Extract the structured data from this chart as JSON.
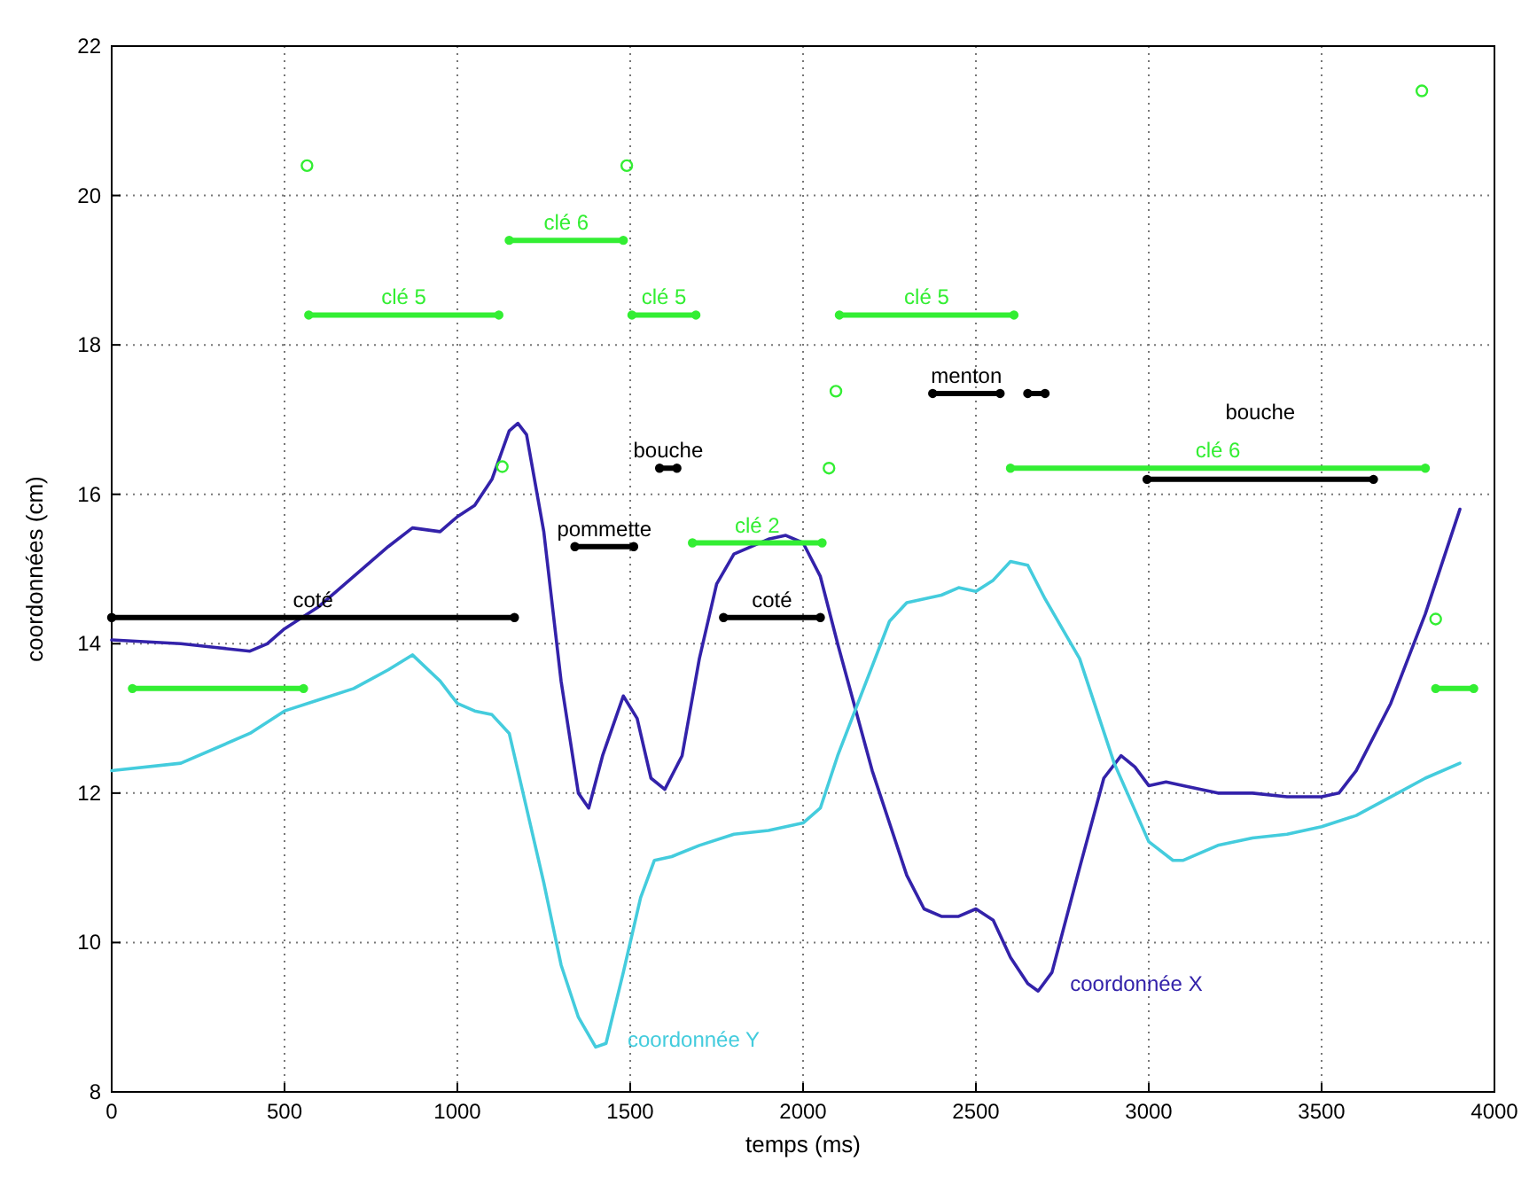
{
  "chart_data": {
    "type": "line",
    "xlabel": "temps (ms)",
    "ylabel": "coordonnées (cm)",
    "xlim": [
      0,
      4000
    ],
    "ylim": [
      8,
      22
    ],
    "xticks": [
      0,
      500,
      1000,
      1500,
      2000,
      2500,
      3000,
      3500,
      4000
    ],
    "yticks": [
      8,
      10,
      12,
      14,
      16,
      18,
      20,
      22
    ],
    "grid": true,
    "line_style": "solid",
    "series": [
      {
        "name": "coordonnée X",
        "color": "#3322aa",
        "x": [
          0,
          200,
          300,
          400,
          450,
          500,
          600,
          700,
          800,
          870,
          950,
          1000,
          1050,
          1100,
          1150,
          1175,
          1200,
          1250,
          1300,
          1350,
          1380,
          1420,
          1480,
          1520,
          1560,
          1600,
          1650,
          1700,
          1750,
          1800,
          1900,
          1950,
          2000,
          2050,
          2100,
          2200,
          2300,
          2350,
          2400,
          2450,
          2500,
          2550,
          2600,
          2650,
          2680,
          2720,
          2800,
          2870,
          2920,
          2960,
          3000,
          3050,
          3100,
          3200,
          3300,
          3400,
          3500,
          3550,
          3600,
          3700,
          3800,
          3900
        ],
        "values": [
          14.05,
          14.0,
          13.95,
          13.9,
          14.0,
          14.2,
          14.5,
          14.9,
          15.3,
          15.55,
          15.5,
          15.7,
          15.85,
          16.2,
          16.85,
          16.95,
          16.8,
          15.5,
          13.5,
          12.0,
          11.8,
          12.5,
          13.3,
          13.0,
          12.2,
          12.05,
          12.5,
          13.8,
          14.8,
          15.2,
          15.4,
          15.45,
          15.35,
          14.9,
          14.0,
          12.3,
          10.9,
          10.45,
          10.35,
          10.35,
          10.45,
          10.3,
          9.8,
          9.45,
          9.35,
          9.6,
          11.0,
          12.2,
          12.5,
          12.35,
          12.1,
          12.15,
          12.1,
          12.0,
          12.0,
          11.95,
          11.95,
          12.0,
          12.3,
          13.2,
          14.4,
          15.8
        ]
      },
      {
        "name": "coordonnée Y",
        "color": "#44ccdd",
        "x": [
          0,
          200,
          400,
          500,
          600,
          700,
          800,
          870,
          950,
          1000,
          1050,
          1100,
          1150,
          1200,
          1250,
          1300,
          1350,
          1400,
          1430,
          1480,
          1530,
          1570,
          1620,
          1700,
          1800,
          1900,
          2000,
          2050,
          2100,
          2200,
          2250,
          2300,
          2400,
          2450,
          2500,
          2550,
          2600,
          2650,
          2700,
          2800,
          2900,
          3000,
          3070,
          3100,
          3200,
          3300,
          3400,
          3500,
          3600,
          3700,
          3800,
          3900
        ],
        "values": [
          12.3,
          12.4,
          12.8,
          13.1,
          13.25,
          13.4,
          13.65,
          13.85,
          13.5,
          13.2,
          13.1,
          13.05,
          12.8,
          11.8,
          10.8,
          9.7,
          9.0,
          8.6,
          8.65,
          9.6,
          10.6,
          11.1,
          11.15,
          11.3,
          11.45,
          11.5,
          11.6,
          11.8,
          12.5,
          13.7,
          14.3,
          14.55,
          14.65,
          14.75,
          14.7,
          14.85,
          15.1,
          15.05,
          14.6,
          13.8,
          12.4,
          11.35,
          11.1,
          11.1,
          11.3,
          11.4,
          11.45,
          11.55,
          11.7,
          11.95,
          12.2,
          12.4
        ]
      },
      {
        "name": "clé 5",
        "color": "#33ee33",
        "type": "line",
        "marker": "circle",
        "x": [
          570,
          1120
        ],
        "values": [
          18.4,
          18.4
        ]
      },
      {
        "name": "clé 6",
        "color": "#33ee33",
        "type": "line",
        "marker": "circle",
        "x": [
          1150,
          1480
        ],
        "values": [
          19.4,
          19.4
        ]
      },
      {
        "name": "clé 5",
        "color": "#33ee33",
        "type": "line",
        "marker": "circle",
        "x": [
          1505,
          1690
        ],
        "values": [
          18.4,
          18.4
        ]
      },
      {
        "name": "clé 5",
        "color": "#33ee33",
        "type": "line",
        "marker": "circle",
        "x": [
          2105,
          2610
        ],
        "values": [
          18.4,
          18.4
        ]
      },
      {
        "name": "clé 2",
        "color": "#33ee33",
        "type": "line",
        "marker": "circle",
        "x": [
          1680,
          2055
        ],
        "values": [
          15.35,
          15.35
        ]
      },
      {
        "color": "#33ee33",
        "type": "line",
        "marker": "circle",
        "x": [
          60,
          555
        ],
        "values": [
          13.4,
          13.4
        ]
      },
      {
        "name": "clé 6",
        "color": "#33ee33",
        "type": "line",
        "marker": "circle",
        "x": [
          2600,
          3800
        ],
        "values": [
          16.35,
          16.35
        ]
      },
      {
        "color": "#33ee33",
        "type": "line",
        "marker": "circle",
        "x": [
          3830,
          3940
        ],
        "values": [
          13.4,
          13.4
        ]
      },
      {
        "name": "coté",
        "color": "#000000",
        "type": "line",
        "marker": "circle",
        "x": [
          0,
          1165
        ],
        "values": [
          14.35,
          14.35
        ]
      },
      {
        "name": "pommette",
        "color": "#000000",
        "type": "line",
        "marker": "circle",
        "x": [
          1340,
          1510
        ],
        "values": [
          15.3,
          15.3
        ]
      },
      {
        "name": "bouche",
        "color": "#000000",
        "type": "line",
        "marker": "circle",
        "x": [
          1585,
          1635
        ],
        "values": [
          16.35,
          16.35
        ]
      },
      {
        "name": "coté",
        "color": "#000000",
        "type": "line",
        "marker": "circle",
        "x": [
          1770,
          2050
        ],
        "values": [
          14.35,
          14.35
        ]
      },
      {
        "name": "menton",
        "color": "#000000",
        "type": "line",
        "marker": "circle",
        "x": [
          2375,
          2570
        ],
        "values": [
          17.35,
          17.35
        ]
      },
      {
        "color": "#000000",
        "type": "line",
        "marker": "circle",
        "x": [
          2650,
          2700
        ],
        "values": [
          17.35,
          17.35
        ]
      },
      {
        "name": "bouche",
        "color": "#000000",
        "type": "line",
        "marker": "circle",
        "x": [
          2995,
          3650
        ],
        "values": [
          16.2,
          16.2
        ]
      },
      {
        "color": "#33ee33",
        "type": "scatter",
        "marker": "circle",
        "x": [
          565,
          1490,
          1130,
          2095,
          2075,
          3790,
          3830
        ],
        "values": [
          20.4,
          20.4,
          16.37,
          17.38,
          16.35,
          21.4,
          14.33
        ]
      }
    ]
  }
}
